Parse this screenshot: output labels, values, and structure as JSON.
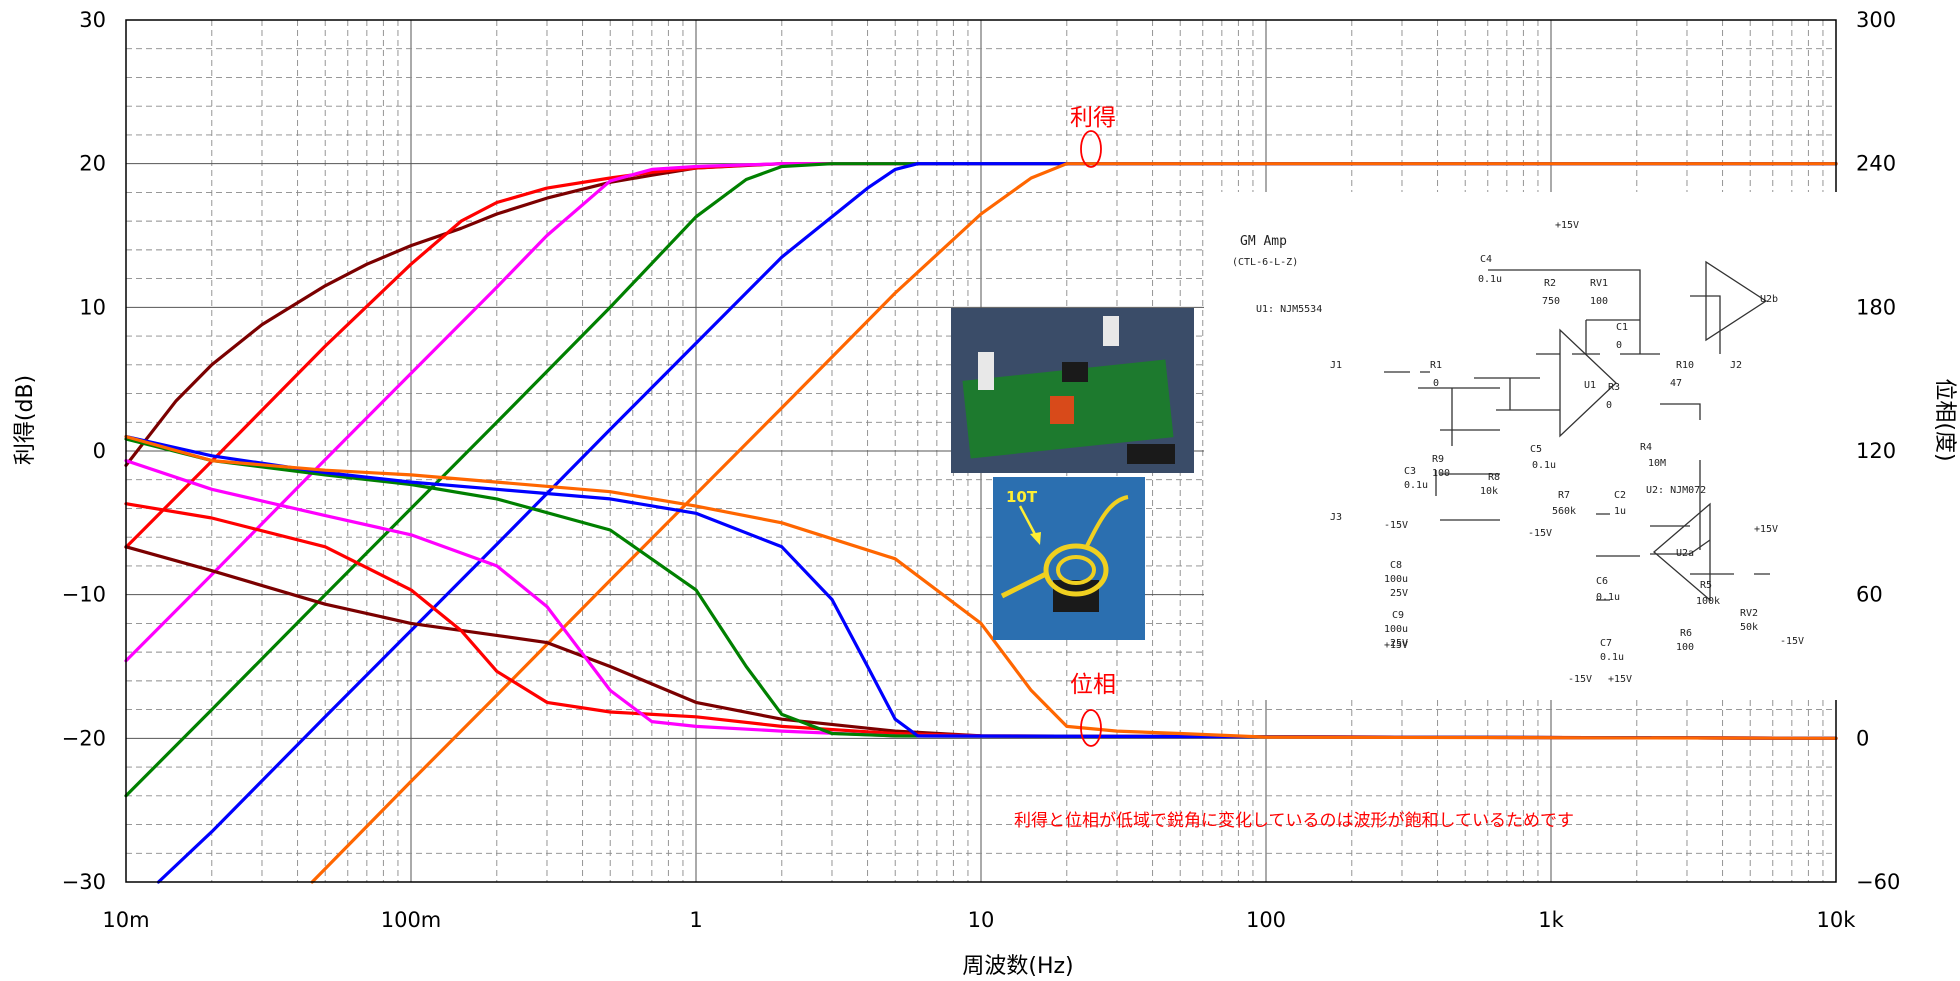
{
  "chart_data": {
    "type": "line",
    "xlabel": "周波数(Hz)",
    "ylabel_left": "利得(dB)",
    "ylabel_right": "位相(度)",
    "x_scale": "log",
    "xlim": [
      0.01,
      10000
    ],
    "ylim_left": [
      -30,
      30
    ],
    "ylim_right": [
      -60,
      300
    ],
    "x_ticks": [
      {
        "value": 0.01,
        "label": "10m"
      },
      {
        "value": 0.1,
        "label": "100m"
      },
      {
        "value": 1,
        "label": "1"
      },
      {
        "value": 10,
        "label": "10"
      },
      {
        "value": 100,
        "label": "100"
      },
      {
        "value": 1000,
        "label": "1k"
      },
      {
        "value": 10000,
        "label": "10k"
      }
    ],
    "y_ticks_left": [
      {
        "value": 30,
        "label": "30"
      },
      {
        "value": 20,
        "label": "20"
      },
      {
        "value": 10,
        "label": "10"
      },
      {
        "value": 0,
        "label": "0"
      },
      {
        "value": -10,
        "label": "−10"
      },
      {
        "value": -20,
        "label": "−20"
      },
      {
        "value": -30,
        "label": "−30"
      }
    ],
    "y_ticks_right": [
      {
        "value": 300,
        "label": "300"
      },
      {
        "value": 240,
        "label": "240"
      },
      {
        "value": 180,
        "label": "180"
      },
      {
        "value": 120,
        "label": "120"
      },
      {
        "value": 60,
        "label": "60"
      },
      {
        "value": 0,
        "label": "0"
      },
      {
        "value": -60,
        "label": "−60"
      }
    ],
    "grid": true,
    "legend": "none",
    "annotations": {
      "gain": "利得",
      "phase": "位相",
      "note": "利得と位相が低域で鋭角に変化しているのは波形が飽和しているためです"
    },
    "series": [
      {
        "kind": "gain",
        "color": "#7b0000",
        "x": [
          0.01,
          0.015,
          0.02,
          0.03,
          0.05,
          0.07,
          0.1,
          0.15,
          0.2,
          0.3,
          0.5,
          0.7,
          1,
          2,
          10000
        ],
        "values": [
          -1,
          3.5,
          6,
          8.8,
          11.5,
          13,
          14.3,
          15.5,
          16.5,
          17.6,
          18.7,
          19.2,
          19.7,
          20,
          20
        ]
      },
      {
        "kind": "gain",
        "color": "#ff0000",
        "x": [
          0.01,
          0.02,
          0.05,
          0.1,
          0.15,
          0.2,
          0.3,
          0.5,
          0.7,
          1,
          1.5,
          2,
          10000
        ],
        "values": [
          -6.7,
          -0.7,
          7.3,
          13,
          16,
          17.3,
          18.3,
          19,
          19.4,
          19.7,
          19.9,
          20,
          20
        ]
      },
      {
        "kind": "gain",
        "color": "#ff00ff",
        "x": [
          0.01,
          0.02,
          0.05,
          0.1,
          0.2,
          0.3,
          0.5,
          0.7,
          1,
          2,
          10000
        ],
        "values": [
          -14.6,
          -8.6,
          -0.6,
          5.4,
          11.4,
          15,
          18.8,
          19.6,
          19.8,
          20,
          20
        ]
      },
      {
        "kind": "gain",
        "color": "#008000",
        "x": [
          0.01,
          0.02,
          0.05,
          0.1,
          0.2,
          0.5,
          1,
          1.5,
          2,
          3,
          10000
        ],
        "values": [
          -24,
          -18,
          -10,
          -4,
          2,
          10,
          16.3,
          18.9,
          19.8,
          20,
          20
        ]
      },
      {
        "kind": "gain",
        "color": "#0000ff",
        "x": [
          0.013,
          0.02,
          0.05,
          0.1,
          0.2,
          0.5,
          1,
          2,
          4,
          5,
          6,
          10000
        ],
        "values": [
          -30,
          -26.5,
          -18.5,
          -12.5,
          -6.5,
          1.5,
          7.5,
          13.5,
          18.3,
          19.6,
          20,
          20
        ]
      },
      {
        "kind": "gain",
        "color": "#ff6600",
        "x": [
          0.045,
          0.1,
          0.2,
          0.5,
          1,
          2,
          5,
          10,
          15,
          20,
          10000
        ],
        "values": [
          -30,
          -23,
          -17,
          -9,
          -3,
          3,
          11,
          16.5,
          19,
          20,
          20
        ]
      },
      {
        "kind": "phase",
        "color": "#7b0000",
        "x": [
          0.01,
          0.02,
          0.05,
          0.1,
          0.2,
          0.3,
          0.5,
          1,
          2,
          5,
          10,
          10000
        ],
        "values": [
          80,
          70,
          56,
          48,
          43,
          40,
          30,
          15,
          8,
          3,
          1,
          0
        ]
      },
      {
        "kind": "phase",
        "color": "#ff0000",
        "x": [
          0.01,
          0.02,
          0.05,
          0.1,
          0.15,
          0.2,
          0.3,
          0.5,
          1,
          2,
          5,
          10,
          10000
        ],
        "values": [
          98,
          92,
          80,
          62,
          45,
          28,
          15,
          11,
          9,
          5,
          2,
          1,
          0
        ]
      },
      {
        "kind": "phase",
        "color": "#ff00ff",
        "x": [
          0.01,
          0.02,
          0.05,
          0.1,
          0.2,
          0.3,
          0.5,
          0.7,
          1,
          2,
          5,
          10000
        ],
        "values": [
          116,
          104,
          93,
          85,
          72,
          55,
          20,
          7,
          5,
          3,
          1,
          0
        ]
      },
      {
        "kind": "phase",
        "color": "#008000",
        "x": [
          0.01,
          0.02,
          0.05,
          0.1,
          0.2,
          0.5,
          1,
          1.5,
          2,
          3,
          5,
          10000
        ],
        "values": [
          125,
          116,
          110,
          106,
          100,
          87,
          62,
          30,
          10,
          2,
          1,
          0
        ]
      },
      {
        "kind": "phase",
        "color": "#0000ff",
        "x": [
          0.01,
          0.02,
          0.05,
          0.1,
          0.2,
          0.5,
          1,
          2,
          3,
          4,
          5,
          6,
          10000
        ],
        "values": [
          126,
          118,
          111,
          107,
          104,
          100,
          94,
          80,
          58,
          30,
          8,
          1,
          0
        ]
      },
      {
        "kind": "phase",
        "color": "#ff6600",
        "x": [
          0.01,
          0.02,
          0.05,
          0.1,
          0.2,
          0.5,
          1,
          2,
          5,
          10,
          15,
          20,
          30,
          50,
          100,
          10000
        ],
        "values": [
          126,
          116,
          112,
          110,
          107,
          103,
          97,
          90,
          75,
          48,
          20,
          5,
          3,
          2,
          0.5,
          0
        ]
      }
    ]
  },
  "inset": {
    "photo_label": "10T",
    "schematic": {
      "title": "GM Amp",
      "subtitle": "(CTL-6-L-Z)",
      "u1": "U1: NJM5534",
      "u2": "U2: NJM072",
      "labels": [
        "+15V",
        "C4",
        "0.1u",
        "R2",
        "750",
        "RV1",
        "100",
        "C1",
        "0",
        "R1",
        "0",
        "U1",
        "R3",
        "0",
        "R10",
        "47",
        "J1",
        "J2",
        "J3",
        "C3",
        "0.1u",
        "R9",
        "100",
        "R8",
        "10k",
        "C5",
        "0.1u",
        "R4",
        "10M",
        "R7",
        "560k",
        "C2",
        "1u",
        "U2a",
        "U2b",
        "R5",
        "100k",
        "RV2",
        "50k",
        "R6",
        "100",
        "C8",
        "100u",
        "25V",
        "C9",
        "100u",
        "25V",
        "C6",
        "0.1u",
        "C7",
        "0.1u",
        "-15V",
        "+15V",
        "+15V",
        "-15V",
        "-15V",
        "+15V",
        "-15V"
      ]
    }
  }
}
